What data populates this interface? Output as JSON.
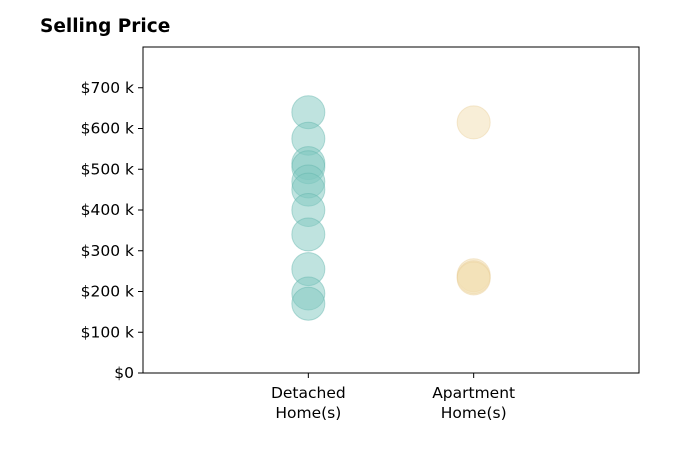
{
  "chart_data": {
    "type": "scatter",
    "title": "Selling Price",
    "xlabel": "",
    "ylabel": "",
    "categories": [
      {
        "lines": [
          "Detached",
          "Home(s)"
        ]
      },
      {
        "lines": [
          "Apartment",
          "Home(s)"
        ]
      }
    ],
    "ylim": [
      0,
      800000
    ],
    "y_ticks": [
      {
        "value": 0,
        "label": "$0"
      },
      {
        "value": 100000,
        "label": "$100 k"
      },
      {
        "value": 200000,
        "label": "$200 k"
      },
      {
        "value": 300000,
        "label": "$300 k"
      },
      {
        "value": 400000,
        "label": "$400 k"
      },
      {
        "value": 500000,
        "label": "$500 k"
      },
      {
        "value": 600000,
        "label": "$600 k"
      },
      {
        "value": 700000,
        "label": "$700 k"
      }
    ],
    "grid": false,
    "legend": "none",
    "series": [
      {
        "category_index": 0,
        "color": "#7fc7c0",
        "stroke": "#5fb3ab",
        "values": [
          640000,
          575000,
          515000,
          505000,
          470000,
          450000,
          400000,
          340000,
          255000,
          195000,
          170000
        ]
      },
      {
        "category_index": 1,
        "color": "#f1ddb0",
        "stroke": "#e8cf98",
        "values": [
          615000,
          240000,
          235000,
          232000
        ]
      }
    ]
  }
}
